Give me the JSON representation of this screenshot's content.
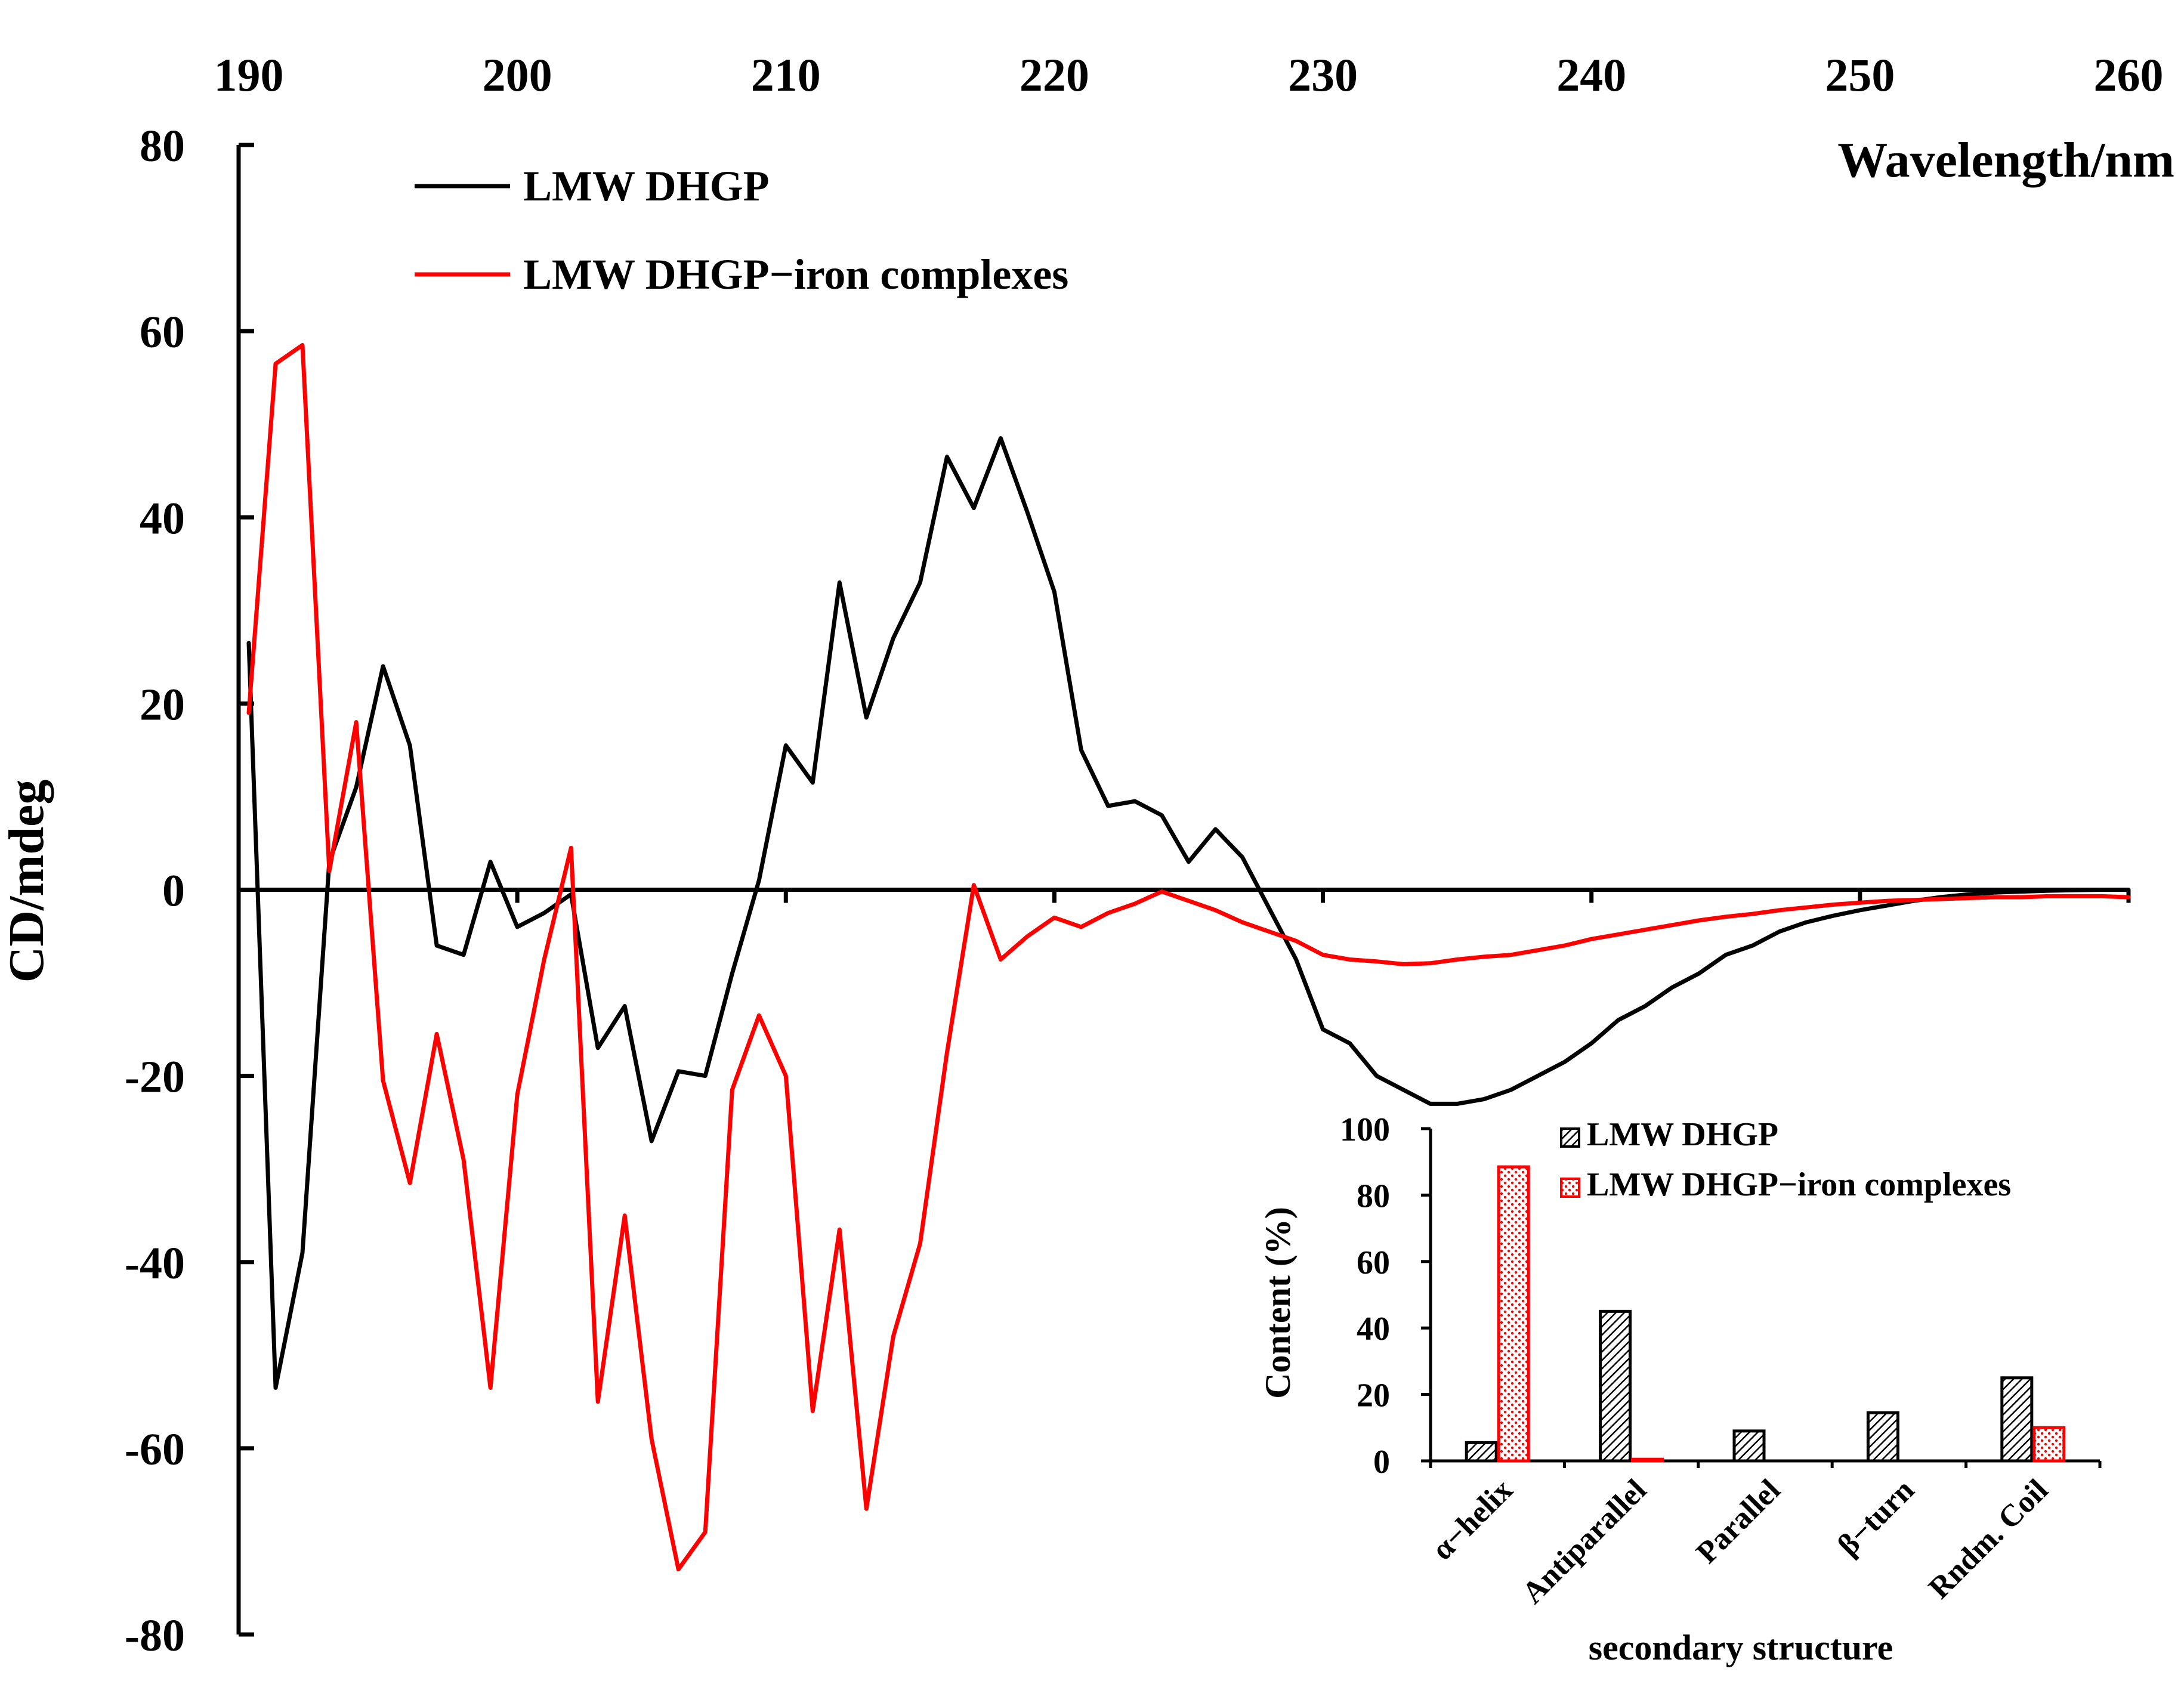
{
  "chart_data": [
    {
      "type": "line",
      "title": "",
      "xlabel": "Wavelength/nm",
      "ylabel": "CD/mdeg",
      "xlim": [
        190,
        260
      ],
      "ylim": [
        -80,
        80
      ],
      "x_ticks": [
        "190",
        "200",
        "210",
        "220",
        "230",
        "240",
        "250",
        "260"
      ],
      "y_ticks": [
        "80",
        "60",
        "40",
        "20",
        "0",
        "-20",
        "-40",
        "-60",
        "-80"
      ],
      "x_axis_position": "top",
      "zero_line": true,
      "grid": false,
      "legend_position": "top-left",
      "x": [
        190,
        191,
        192,
        193,
        194,
        195,
        196,
        197,
        198,
        199,
        200,
        201,
        202,
        203,
        204,
        205,
        206,
        207,
        208,
        209,
        210,
        211,
        212,
        213,
        214,
        215,
        216,
        217,
        218,
        219,
        220,
        221,
        222,
        223,
        224,
        225,
        226,
        227,
        228,
        229,
        230,
        231,
        232,
        233,
        234,
        235,
        236,
        237,
        238,
        239,
        240,
        241,
        242,
        243,
        244,
        245,
        246,
        247,
        248,
        249,
        250,
        251,
        252,
        253,
        254,
        255,
        256,
        257,
        258,
        259,
        260
      ],
      "series": [
        {
          "name": "LMW DHGP",
          "color": "#000000",
          "values": [
            26.5,
            -53.5,
            -39,
            3,
            11,
            24,
            15.5,
            -6,
            -7,
            3,
            -4,
            -2.5,
            -0.5,
            -17,
            -12.5,
            -27,
            -19.5,
            -20,
            -9,
            1,
            15.5,
            11.5,
            33,
            18.5,
            27,
            33,
            46.5,
            41,
            48.5,
            40.5,
            32,
            15,
            9,
            9.5,
            8,
            3,
            6.5,
            3.5,
            -2,
            -7.5,
            -15,
            -16.5,
            -20,
            -21.5,
            -23,
            -23,
            -22.5,
            -21.5,
            -20,
            -18.5,
            -16.5,
            -14,
            -12.5,
            -10.5,
            -9,
            -7,
            -6,
            -4.5,
            -3.5,
            -2.8,
            -2.2,
            -1.7,
            -1.2,
            -0.8,
            -0.5,
            -0.3,
            -0.2,
            -0.1,
            -0.05,
            0,
            0
          ]
        },
        {
          "name": "LMW DHGP−iron complexes",
          "color": "#ff0000",
          "values": [
            19,
            56.5,
            58.5,
            2,
            18,
            -20.5,
            -31.5,
            -15.5,
            -29,
            -53.5,
            -22,
            -7.5,
            4.5,
            -55,
            -35,
            -59,
            -73,
            -69,
            -21.5,
            -13.5,
            -20,
            -56,
            -36.5,
            -66.5,
            -48,
            -38,
            -17.5,
            0.5,
            -7.5,
            -5,
            -3,
            -4,
            -2.5,
            -1.5,
            -0.2,
            -1.2,
            -2.2,
            -3.5,
            -4.5,
            -5.5,
            -7,
            -7.5,
            -7.7,
            -8,
            -7.9,
            -7.5,
            -7.2,
            -7,
            -6.5,
            -6,
            -5.3,
            -4.8,
            -4.3,
            -3.8,
            -3.3,
            -2.9,
            -2.6,
            -2.2,
            -1.9,
            -1.6,
            -1.4,
            -1.2,
            -1.1,
            -1,
            -0.9,
            -0.8,
            -0.8,
            -0.7,
            -0.7,
            -0.7,
            -0.8
          ]
        }
      ]
    },
    {
      "type": "bar",
      "title": "",
      "xlabel": "secondary structure",
      "ylabel": "Content (%)",
      "ylim": [
        0,
        100
      ],
      "y_ticks": [
        "100",
        "80",
        "60",
        "40",
        "20",
        "0"
      ],
      "categories": [
        "α−helix",
        "Antiparallel",
        "Parallel",
        "β−turn",
        "Rndm. Coil"
      ],
      "legend_position": "top-right",
      "series": [
        {
          "name": "LMW DHGP",
          "color": "#000000",
          "pattern": "diagonal-hatch",
          "values": [
            5.5,
            45,
            9,
            14.5,
            25
          ]
        },
        {
          "name": "LMW DHGP−iron complexes",
          "color": "#ff0000",
          "pattern": "dots",
          "values": [
            88.5,
            0.5,
            0,
            0,
            10
          ]
        }
      ]
    }
  ]
}
